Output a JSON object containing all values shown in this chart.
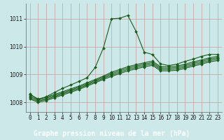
{
  "title": "Graphe pression niveau de la mer (hPa)",
  "background_color": "#cce8e8",
  "grid_color": "#c8a8a8",
  "line_color": "#1a5c1a",
  "xlim": [
    -0.5,
    23.5
  ],
  "ylim": [
    1007.65,
    1011.55
  ],
  "yticks": [
    1008,
    1009,
    1010,
    1011
  ],
  "xticks": [
    0,
    1,
    2,
    3,
    4,
    5,
    6,
    7,
    8,
    9,
    10,
    11,
    12,
    13,
    14,
    15,
    16,
    17,
    18,
    19,
    20,
    21,
    22,
    23
  ],
  "series_main": [
    1008.3,
    1008.1,
    1008.2,
    1008.35,
    1008.5,
    1008.62,
    1008.75,
    1008.88,
    1009.25,
    1009.95,
    1011.0,
    1011.02,
    1011.12,
    1010.55,
    1009.8,
    1009.72,
    1009.38,
    1009.32,
    1009.37,
    1009.47,
    1009.55,
    1009.65,
    1009.72,
    1009.72
  ],
  "series_flat": [
    [
      1008.28,
      1008.12,
      1008.18,
      1008.28,
      1008.38,
      1008.48,
      1008.58,
      1008.7,
      1008.82,
      1008.94,
      1009.08,
      1009.18,
      1009.28,
      1009.35,
      1009.42,
      1009.48,
      1009.28,
      1009.28,
      1009.3,
      1009.37,
      1009.45,
      1009.52,
      1009.6,
      1009.65
    ],
    [
      1008.22,
      1008.08,
      1008.14,
      1008.24,
      1008.34,
      1008.44,
      1008.54,
      1008.66,
      1008.78,
      1008.9,
      1009.03,
      1009.13,
      1009.23,
      1009.3,
      1009.37,
      1009.43,
      1009.23,
      1009.23,
      1009.25,
      1009.32,
      1009.4,
      1009.47,
      1009.55,
      1009.6
    ],
    [
      1008.17,
      1008.04,
      1008.1,
      1008.2,
      1008.3,
      1008.4,
      1008.5,
      1008.62,
      1008.74,
      1008.86,
      1008.98,
      1009.08,
      1009.18,
      1009.25,
      1009.32,
      1009.38,
      1009.18,
      1009.18,
      1009.2,
      1009.27,
      1009.35,
      1009.42,
      1009.5,
      1009.55
    ],
    [
      1008.12,
      1008.0,
      1008.06,
      1008.16,
      1008.26,
      1008.36,
      1008.46,
      1008.58,
      1008.7,
      1008.82,
      1008.93,
      1009.03,
      1009.13,
      1009.2,
      1009.27,
      1009.33,
      1009.13,
      1009.13,
      1009.15,
      1009.22,
      1009.3,
      1009.37,
      1009.45,
      1009.5
    ]
  ],
  "marker": "D",
  "markersize": 2.0,
  "linewidth": 0.8,
  "label_bg_color": "#2d6e2d",
  "label_text_color": "#ffffff",
  "tick_fontsize": 5.5,
  "label_fontsize": 7.0
}
